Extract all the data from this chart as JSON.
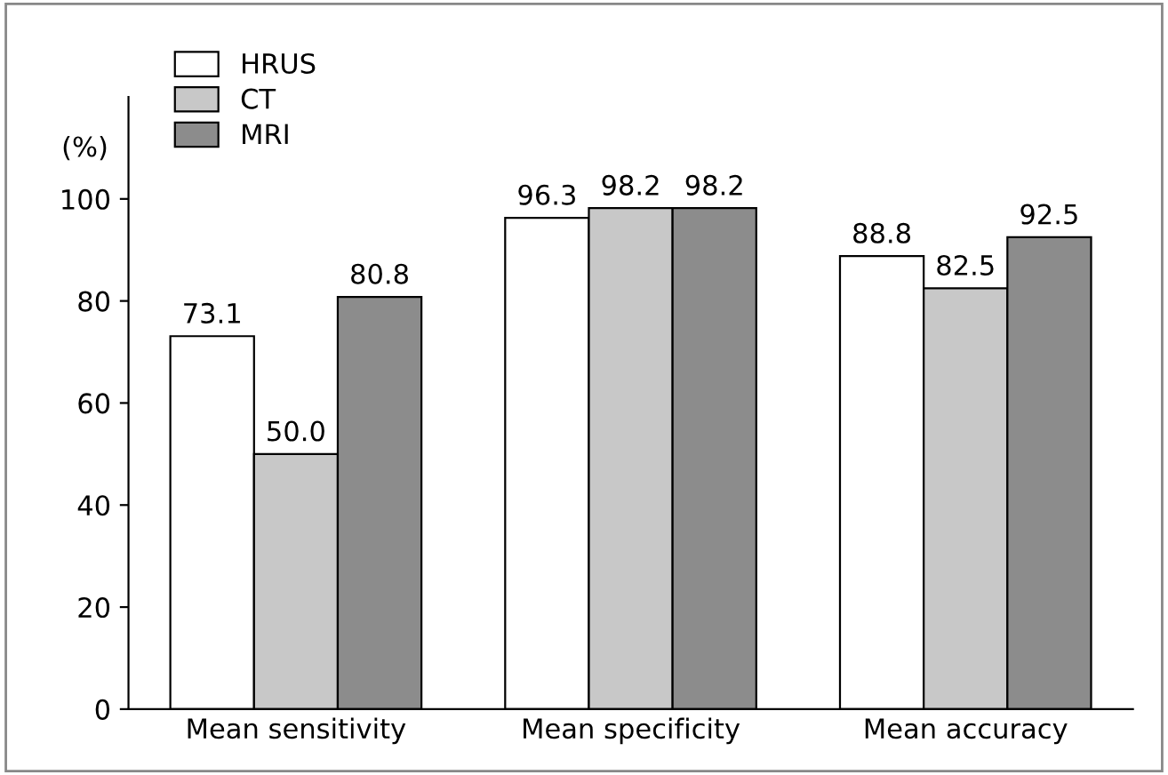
{
  "chart_data": {
    "type": "bar",
    "ylabel": "(%)",
    "categories": [
      "Mean sensitivity",
      "Mean specificity",
      "Mean accuracy"
    ],
    "series": [
      {
        "name": "HRUS",
        "color": "#ffffff",
        "values": [
          73.1,
          96.3,
          88.8
        ]
      },
      {
        "name": "CT",
        "color": "#c8c8c8",
        "values": [
          50.0,
          98.2,
          82.5
        ]
      },
      {
        "name": "MRI",
        "color": "#8c8c8c",
        "values": [
          80.8,
          98.2,
          92.5
        ]
      }
    ],
    "ylim": [
      0,
      120
    ],
    "yticks": [
      0,
      20,
      40,
      60,
      80,
      100
    ],
    "legend": "top left",
    "grid": false,
    "value_labels": [
      [
        "73.1",
        "96.3",
        "88.8"
      ],
      [
        "50.0",
        "98.2",
        "82.5"
      ],
      [
        "80.8",
        "98.2",
        "92.5"
      ]
    ]
  }
}
